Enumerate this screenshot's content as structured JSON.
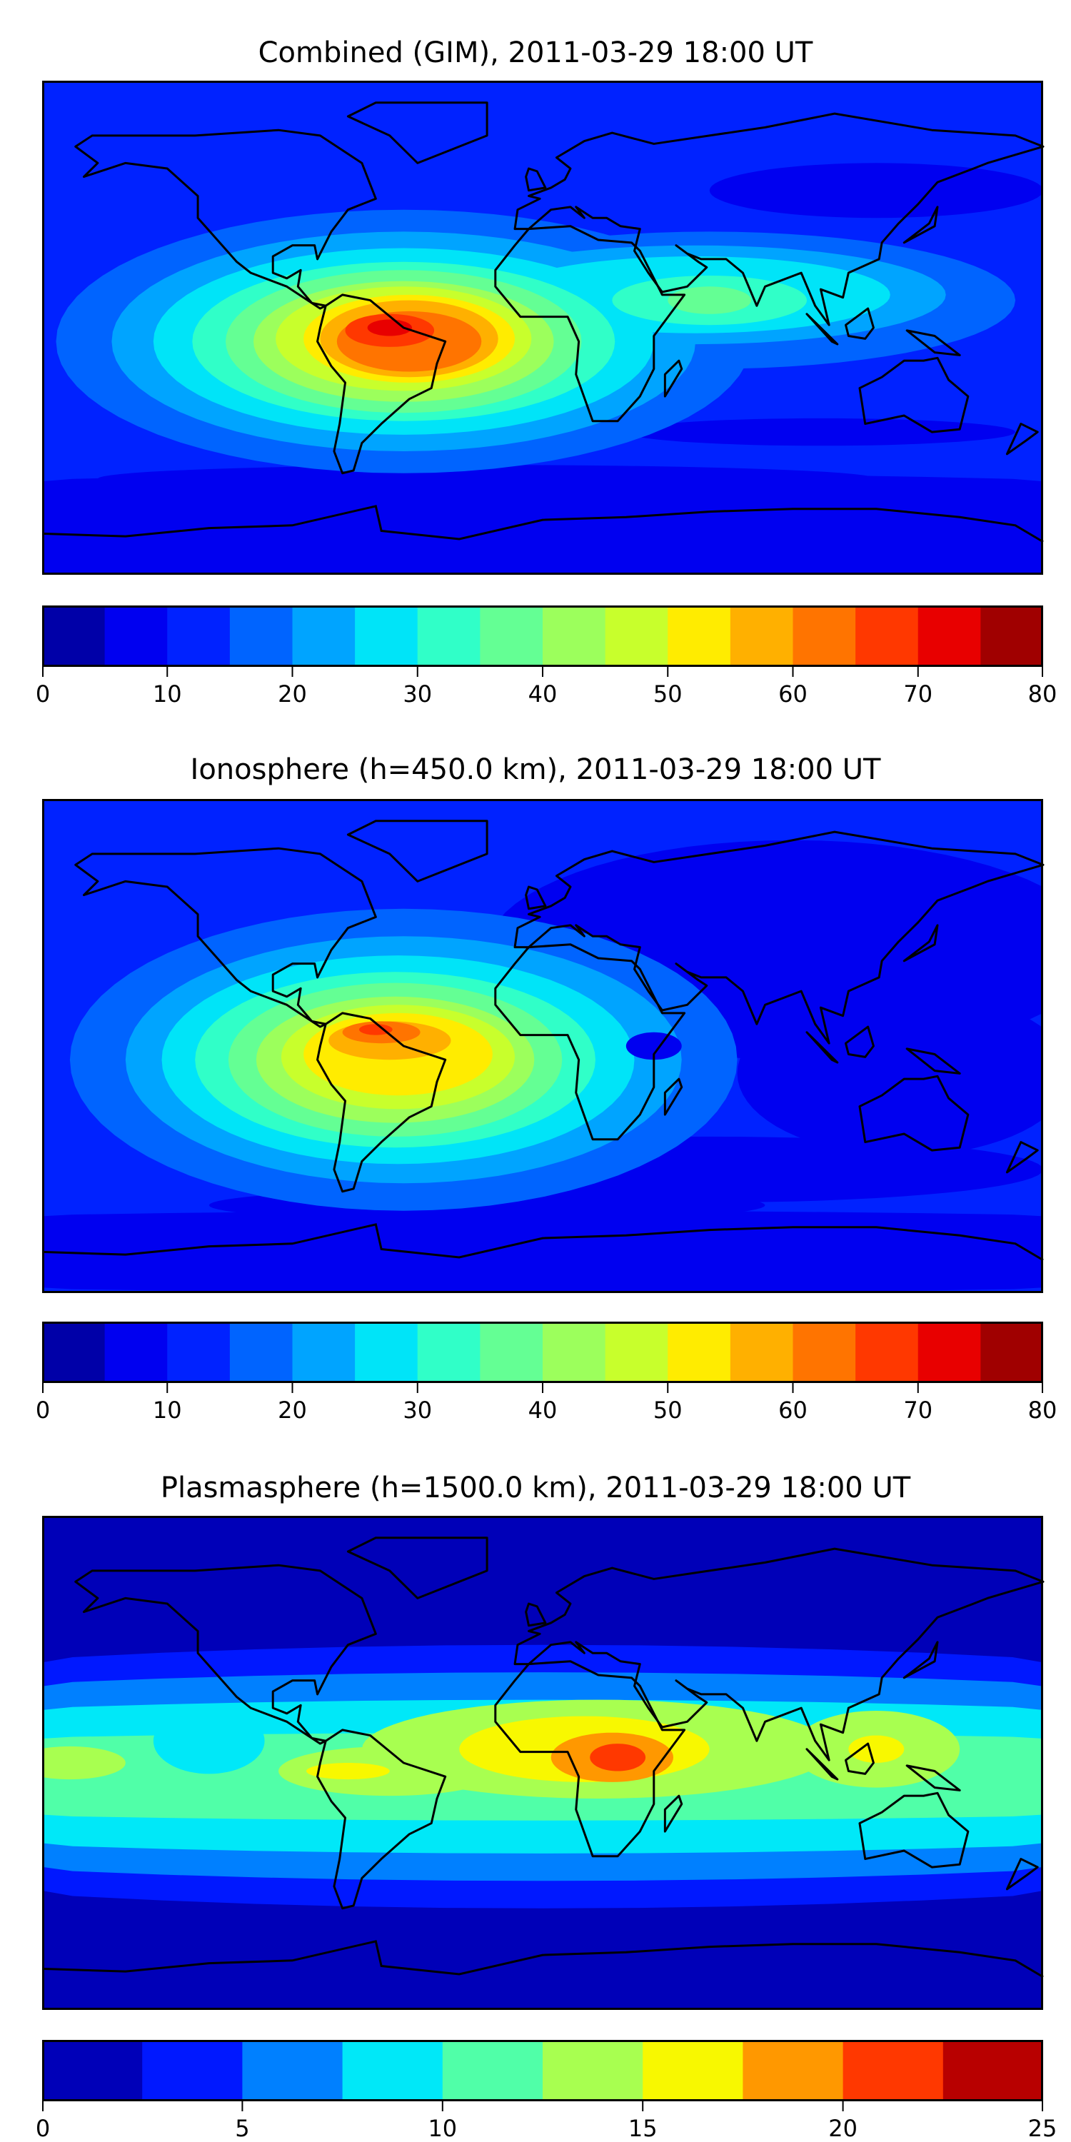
{
  "chart_data": [
    {
      "type": "heatmap",
      "subtype": "filled-contour map",
      "title": "Combined (GIM), 2011-03-29 18:00 UT",
      "xlabel": "",
      "ylabel": "",
      "colorbar": {
        "levels": [
          0,
          5,
          10,
          15,
          20,
          25,
          30,
          35,
          40,
          45,
          50,
          55,
          60,
          65,
          70,
          75,
          80
        ],
        "ticks": [
          "0",
          "10",
          "20",
          "30",
          "40",
          "50",
          "60",
          "70",
          "80"
        ],
        "tick_values": [
          0,
          10,
          20,
          30,
          40,
          50,
          60,
          70,
          80
        ],
        "range": [
          0,
          80
        ],
        "colors": [
          "#0000a8",
          "#0000f0",
          "#0022ff",
          "#0064ff",
          "#00a4ff",
          "#00e4f8",
          "#30ffc8",
          "#64ff94",
          "#9cff5c",
          "#c8ff2c",
          "#ffec00",
          "#ffb000",
          "#ff7400",
          "#ff3800",
          "#e80000",
          "#a00000"
        ]
      },
      "peak_region": "northern South America",
      "peak_range": [
        65,
        70
      ]
    },
    {
      "type": "heatmap",
      "subtype": "filled-contour map",
      "title": "Ionosphere  (h=450.0 km), 2011-03-29 18:00 UT",
      "xlabel": "",
      "ylabel": "",
      "colorbar": {
        "levels": [
          0,
          5,
          10,
          15,
          20,
          25,
          30,
          35,
          40,
          45,
          50,
          55,
          60,
          65,
          70,
          75,
          80
        ],
        "ticks": [
          "0",
          "10",
          "20",
          "30",
          "40",
          "50",
          "60",
          "70",
          "80"
        ],
        "tick_values": [
          0,
          10,
          20,
          30,
          40,
          50,
          60,
          70,
          80
        ],
        "range": [
          0,
          80
        ],
        "colors": [
          "#0000a8",
          "#0000f0",
          "#0022ff",
          "#0064ff",
          "#00a4ff",
          "#00e4f8",
          "#30ffc8",
          "#64ff94",
          "#9cff5c",
          "#c8ff2c",
          "#ffec00",
          "#ffb000",
          "#ff7400",
          "#ff3800",
          "#e80000",
          "#a00000"
        ]
      },
      "peak_region": "northern South America",
      "peak_range": [
        60,
        65
      ]
    },
    {
      "type": "heatmap",
      "subtype": "filled-contour map",
      "title": "Plasmasphere (h=1500.0 km), 2011-03-29 18:00 UT",
      "xlabel": "",
      "ylabel": "",
      "colorbar": {
        "levels": [
          0,
          2.5,
          5,
          7.5,
          10,
          12.5,
          15,
          17.5,
          20,
          22.5,
          25
        ],
        "ticks": [
          "0",
          "5",
          "10",
          "15",
          "20",
          "25"
        ],
        "tick_values": [
          0,
          5,
          10,
          15,
          20,
          25
        ],
        "range": [
          0,
          25
        ],
        "colors": [
          "#0000b8",
          "#0018ff",
          "#0080ff",
          "#00e8f8",
          "#50ffa8",
          "#a8ff50",
          "#f8f800",
          "#ff9800",
          "#ff3800",
          "#b80000"
        ]
      },
      "peak_region": "central Africa",
      "peak_range": [
        20,
        22.5
      ]
    }
  ]
}
